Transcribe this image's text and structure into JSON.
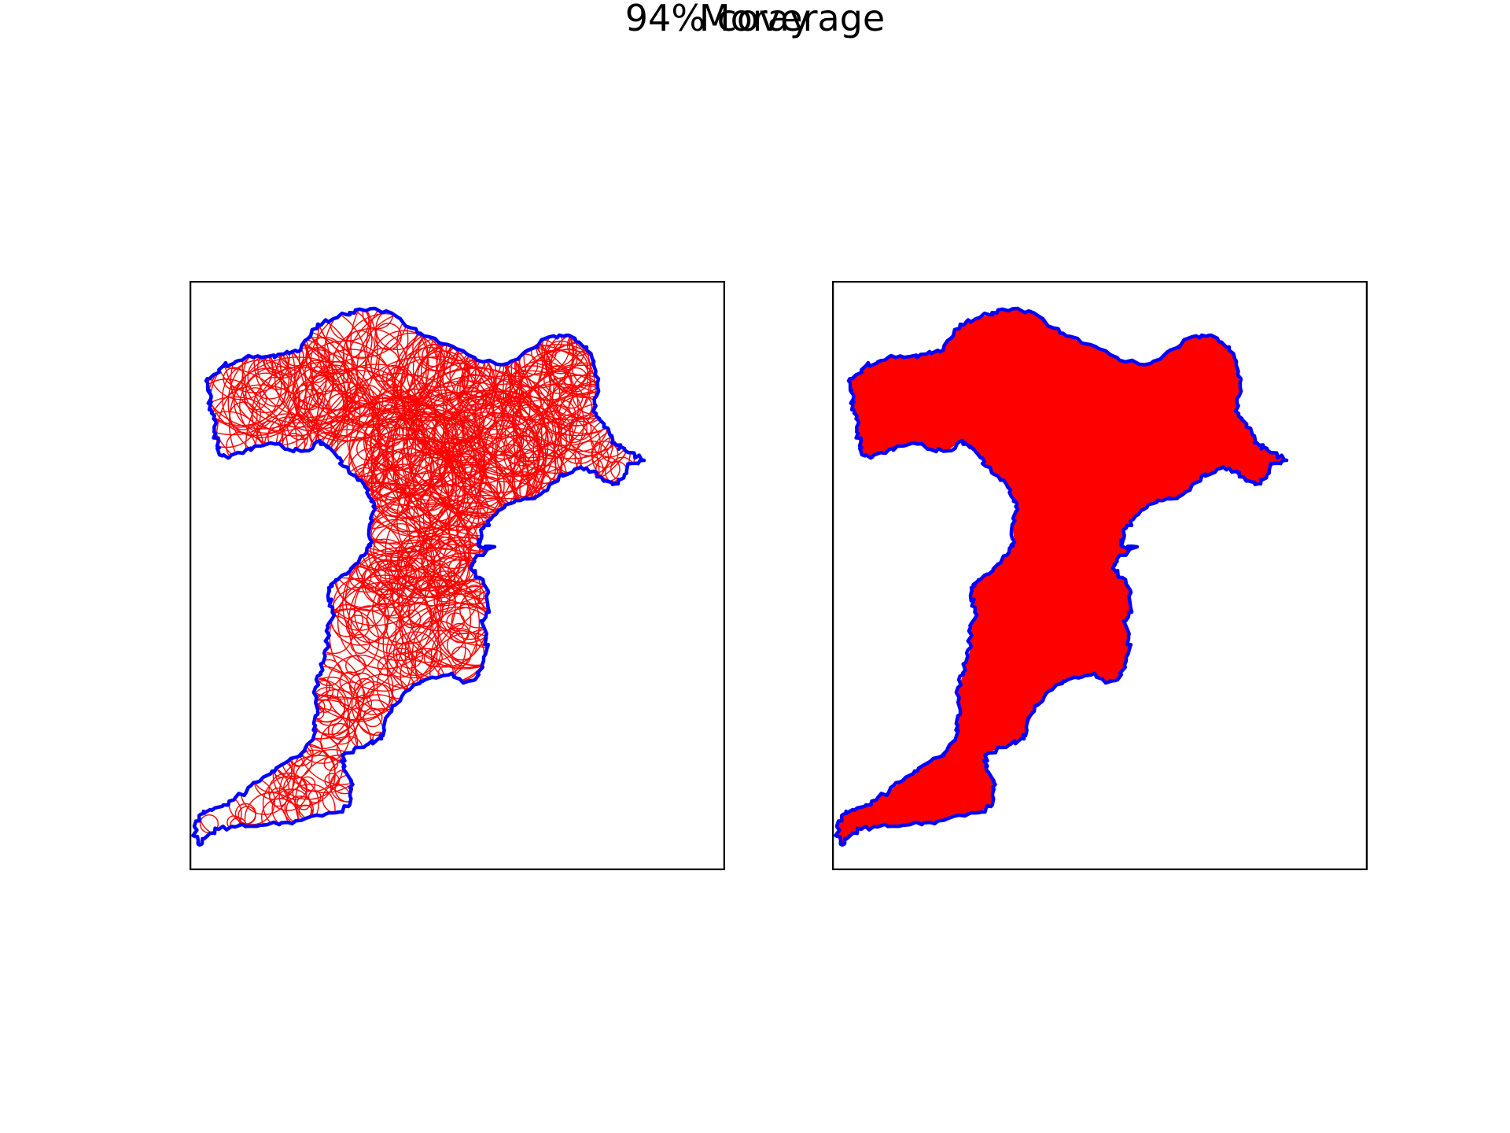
{
  "title": "Moray",
  "subtitle": "94% coverage",
  "colors": {
    "boundary": "#0000ff",
    "circles": "#ff0000",
    "fill": "#ff0000",
    "frame": "#000000",
    "background": "#ffffff"
  },
  "panels": [
    {
      "kind": "circle-cover",
      "description_visible": false
    },
    {
      "kind": "filled-union",
      "description_visible": false
    }
  ]
}
